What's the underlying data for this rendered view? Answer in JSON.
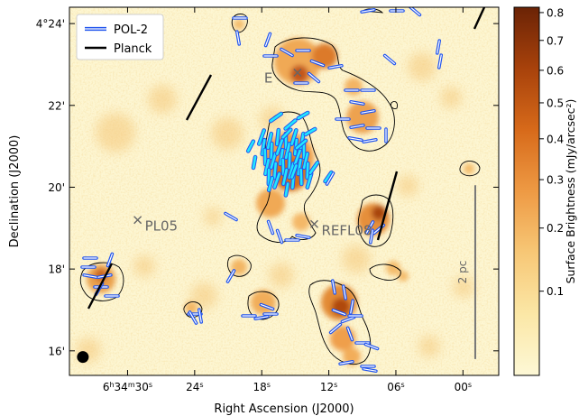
{
  "chart_data": {
    "type": "heatmap",
    "xlabel": "Right Ascension (J2000)",
    "ylabel": "Declination (J2000)",
    "x_ticks": [
      {
        "label": "6h34m30s",
        "value": 30
      },
      {
        "label": "24s",
        "value": 24
      },
      {
        "label": "18s",
        "value": 18
      },
      {
        "label": "12s",
        "value": 12
      },
      {
        "label": "06s",
        "value": 6
      },
      {
        "label": "00s",
        "value": 0
      }
    ],
    "y_ticks": [
      {
        "label": "4°24'",
        "value": 24
      },
      {
        "label": "22'",
        "value": 22
      },
      {
        "label": "20'",
        "value": 20
      },
      {
        "label": "18'",
        "value": 18
      },
      {
        "label": "16'",
        "value": 16
      }
    ],
    "xlim": [
      35.2,
      -3.2
    ],
    "ylim": [
      15.4,
      24.4
    ],
    "colorbar": {
      "label": "Surface Brightness (mJy/arcsec²)",
      "ticks": [
        "0.8",
        "0.7",
        "0.6",
        "0.5",
        "0.4",
        "0.3",
        "0.2",
        "0.1"
      ],
      "tick_values": [
        0.8,
        0.7,
        0.6,
        0.5,
        0.4,
        0.3,
        0.2,
        0.1
      ],
      "range": [
        0.02,
        0.82
      ],
      "scale": "sqrt",
      "colors": [
        "#fdf8d6",
        "#fbe7a6",
        "#f7c776",
        "#ee9a44",
        "#d76a1a",
        "#a8420b",
        "#6b2306"
      ]
    },
    "legend": {
      "placement": "top-left",
      "entries": [
        {
          "name": "POL-2",
          "color": "#2255ee",
          "style": "double-line"
        },
        {
          "name": "Planck",
          "color": "#000000",
          "style": "line"
        }
      ]
    },
    "labels": [
      {
        "text": "E",
        "ra_s": 14.8,
        "dec_min": 22.8,
        "marker": true
      },
      {
        "text": "PL05",
        "ra_s": 29.1,
        "dec_min": 19.2,
        "marker": true
      },
      {
        "text": "REFL08",
        "ra_s": 13.3,
        "dec_min": 19.1,
        "marker": true
      }
    ],
    "scale_bar": {
      "label": "2 pc",
      "ra_s": -1.1,
      "dec_from": 15.8,
      "dec_to": 20.05
    },
    "beam": {
      "ra_s": 34.0,
      "dec_min": 15.85
    }
  }
}
